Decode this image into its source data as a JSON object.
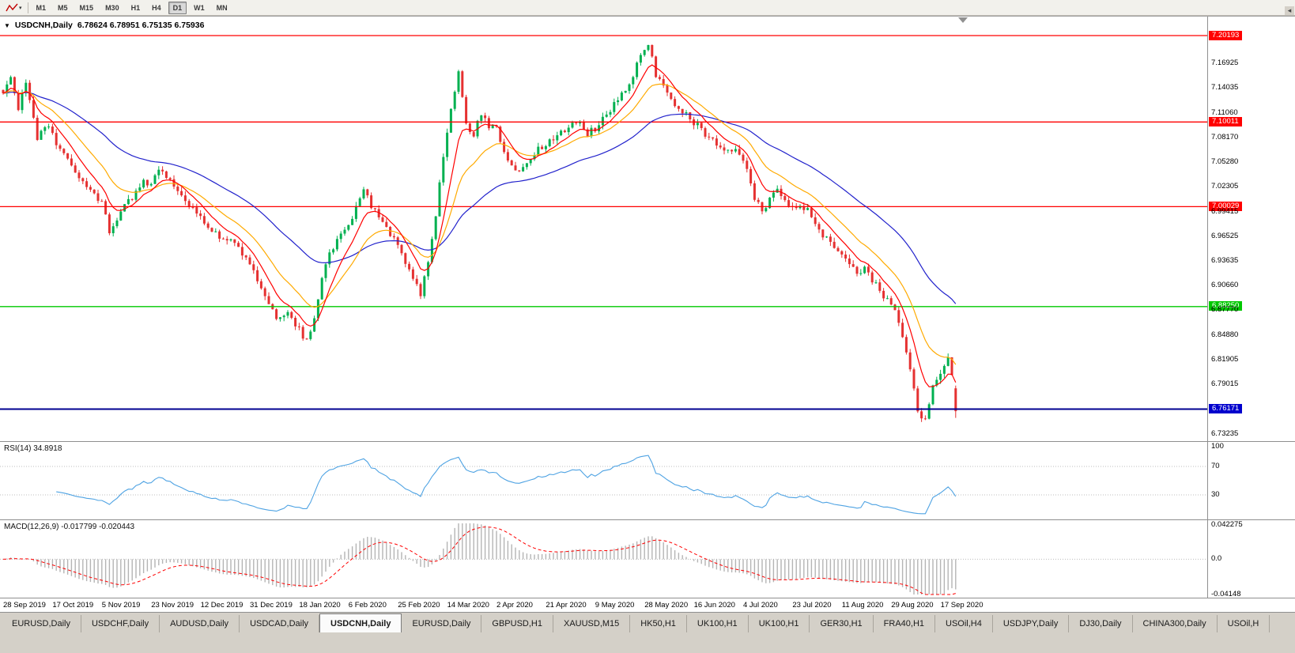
{
  "toolbar": {
    "timeframes": [
      "M1",
      "M5",
      "M15",
      "M30",
      "H1",
      "H4",
      "D1",
      "W1",
      "MN"
    ],
    "active_timeframe": "D1"
  },
  "chart_header": {
    "collapse_icon": "▼",
    "symbol": "USDCNH,Daily",
    "ohlc_text": "6.78624 6.78951 6.75135 6.75936"
  },
  "price_axis": {
    "labels": [
      {
        "text": "7.20193",
        "price": 7.20193,
        "type": "red"
      },
      {
        "text": "7.16925",
        "price": 7.16925,
        "type": "normal"
      },
      {
        "text": "7.14035",
        "price": 7.14035,
        "type": "normal"
      },
      {
        "text": "7.11060",
        "price": 7.1106,
        "type": "normal"
      },
      {
        "text": "7.10011",
        "price": 7.10011,
        "type": "red"
      },
      {
        "text": "7.08170",
        "price": 7.0817,
        "type": "normal"
      },
      {
        "text": "7.05280",
        "price": 7.0528,
        "type": "normal"
      },
      {
        "text": "7.02305",
        "price": 7.02305,
        "type": "normal"
      },
      {
        "text": "7.00029",
        "price": 7.00029,
        "type": "red"
      },
      {
        "text": "6.99415",
        "price": 6.99415,
        "type": "normal"
      },
      {
        "text": "6.96525",
        "price": 6.96525,
        "type": "normal"
      },
      {
        "text": "6.93635",
        "price": 6.93635,
        "type": "normal"
      },
      {
        "text": "6.90660",
        "price": 6.9066,
        "type": "normal"
      },
      {
        "text": "6.88250",
        "price": 6.8825,
        "type": "green"
      },
      {
        "text": "6.87770",
        "price": 6.8777,
        "type": "normal"
      },
      {
        "text": "6.84880",
        "price": 6.8488,
        "type": "normal"
      },
      {
        "text": "6.81905",
        "price": 6.81905,
        "type": "normal"
      },
      {
        "text": "6.79015",
        "price": 6.79015,
        "type": "normal"
      },
      {
        "text": "6.76171",
        "price": 6.76171,
        "type": "blue"
      },
      {
        "text": "6.73235",
        "price": 6.73235,
        "type": "normal"
      }
    ]
  },
  "rsi": {
    "label": "RSI(14) 34.8918",
    "axis": [
      {
        "text": "100",
        "value": 100
      },
      {
        "text": "70",
        "value": 70
      },
      {
        "text": "30",
        "value": 30
      }
    ]
  },
  "macd": {
    "label": "MACD(12,26,9) -0.017799 -0.020443",
    "axis": [
      {
        "text": "0.042275",
        "value": 0.042275
      },
      {
        "text": "0.0",
        "value": 0
      },
      {
        "text": "-0.04148",
        "value": -0.04148
      }
    ]
  },
  "date_axis": {
    "labels": [
      "28 Sep 2019",
      "17 Oct 2019",
      "5 Nov 2019",
      "23 Nov 2019",
      "12 Dec 2019",
      "31 Dec 2019",
      "18 Jan 2020",
      "6 Feb 2020",
      "25 Feb 2020",
      "14 Mar 2020",
      "2 Apr 2020",
      "21 Apr 2020",
      "9 May 2020",
      "28 May 2020",
      "16 Jun 2020",
      "4 Jul 2020",
      "23 Jul 2020",
      "11 Aug 2020",
      "29 Aug 2020",
      "17 Sep 2020"
    ]
  },
  "tabs": {
    "scroll_arrow": "◂",
    "items": [
      {
        "label": "EURUSD,Daily"
      },
      {
        "label": "USDCHF,Daily"
      },
      {
        "label": "AUDUSD,Daily"
      },
      {
        "label": "USDCAD,Daily"
      },
      {
        "label": "USDCNH,Daily",
        "active": true
      },
      {
        "label": "EURUSD,Daily"
      },
      {
        "label": "GBPUSD,H1"
      },
      {
        "label": "XAUUSD,M15"
      },
      {
        "label": "HK50,H1"
      },
      {
        "label": "UK100,H1"
      },
      {
        "label": "UK100,H1"
      },
      {
        "label": "GER30,H1"
      },
      {
        "label": "FRA40,H1"
      },
      {
        "label": "USOil,H4"
      },
      {
        "label": "USDJPY,Daily"
      },
      {
        "label": "DJ30,Daily"
      },
      {
        "label": "CHINA300,Daily"
      },
      {
        "label": "USOil,H"
      }
    ]
  },
  "chart_data": {
    "type": "candlestick",
    "symbol": "USDCNH",
    "timeframe": "Daily",
    "last_candle": {
      "open": 6.78624,
      "high": 6.78951,
      "low": 6.75135,
      "close": 6.75936
    },
    "price_top": 7.20193,
    "price_bottom": 6.73235,
    "candle_count": 252,
    "close_anchors": [
      [
        0,
        7.13
      ],
      [
        2,
        7.152
      ],
      [
        4,
        7.118
      ],
      [
        6,
        7.145
      ],
      [
        9,
        7.082
      ],
      [
        12,
        7.096
      ],
      [
        14,
        7.076
      ],
      [
        17,
        7.056
      ],
      [
        20,
        7.036
      ],
      [
        23,
        7.021
      ],
      [
        26,
        7.004
      ],
      [
        28,
        6.972
      ],
      [
        31,
        6.996
      ],
      [
        34,
        7.012
      ],
      [
        37,
        7.03
      ],
      [
        39,
        7.026
      ],
      [
        41,
        7.044
      ],
      [
        44,
        7.034
      ],
      [
        47,
        7.012
      ],
      [
        50,
        6.999
      ],
      [
        52,
        6.986
      ],
      [
        55,
        6.972
      ],
      [
        58,
        6.962
      ],
      [
        61,
        6.956
      ],
      [
        64,
        6.94
      ],
      [
        67,
        6.916
      ],
      [
        70,
        6.886
      ],
      [
        72,
        6.866
      ],
      [
        75,
        6.872
      ],
      [
        78,
        6.856
      ],
      [
        80,
        6.842
      ],
      [
        82,
        6.872
      ],
      [
        84,
        6.916
      ],
      [
        86,
        6.946
      ],
      [
        88,
        6.962
      ],
      [
        91,
        6.978
      ],
      [
        93,
        7.002
      ],
      [
        95,
        7.018
      ],
      [
        97,
        7.002
      ],
      [
        99,
        6.988
      ],
      [
        101,
        6.976
      ],
      [
        104,
        6.956
      ],
      [
        106,
        6.936
      ],
      [
        108,
        6.918
      ],
      [
        110,
        6.898
      ],
      [
        112,
        6.932
      ],
      [
        114,
        6.992
      ],
      [
        116,
        7.062
      ],
      [
        118,
        7.118
      ],
      [
        120,
        7.156
      ],
      [
        122,
        7.098
      ],
      [
        124,
        7.086
      ],
      [
        126,
        7.112
      ],
      [
        128,
        7.094
      ],
      [
        130,
        7.092
      ],
      [
        132,
        7.068
      ],
      [
        134,
        7.05
      ],
      [
        136,
        7.044
      ],
      [
        139,
        7.058
      ],
      [
        141,
        7.07
      ],
      [
        143,
        7.072
      ],
      [
        146,
        7.082
      ],
      [
        149,
        7.096
      ],
      [
        152,
        7.1
      ],
      [
        154,
        7.086
      ],
      [
        156,
        7.092
      ],
      [
        158,
        7.102
      ],
      [
        160,
        7.116
      ],
      [
        162,
        7.126
      ],
      [
        164,
        7.136
      ],
      [
        166,
        7.156
      ],
      [
        168,
        7.176
      ],
      [
        170,
        7.193
      ],
      [
        172,
        7.154
      ],
      [
        174,
        7.14
      ],
      [
        176,
        7.124
      ],
      [
        178,
        7.114
      ],
      [
        180,
        7.108
      ],
      [
        182,
        7.1
      ],
      [
        185,
        7.086
      ],
      [
        188,
        7.076
      ],
      [
        191,
        7.068
      ],
      [
        194,
        7.062
      ],
      [
        196,
        7.044
      ],
      [
        198,
        7.01
      ],
      [
        200,
        6.994
      ],
      [
        202,
        7.008
      ],
      [
        204,
        7.022
      ],
      [
        206,
        7.01
      ],
      [
        208,
        6.998
      ],
      [
        210,
        7.004
      ],
      [
        212,
        6.996
      ],
      [
        214,
        6.982
      ],
      [
        216,
        6.968
      ],
      [
        218,
        6.958
      ],
      [
        221,
        6.948
      ],
      [
        223,
        6.934
      ],
      [
        225,
        6.922
      ],
      [
        227,
        6.928
      ],
      [
        229,
        6.914
      ],
      [
        231,
        6.9
      ],
      [
        234,
        6.888
      ],
      [
        236,
        6.862
      ],
      [
        238,
        6.826
      ],
      [
        240,
        6.79
      ],
      [
        241,
        6.762
      ],
      [
        242,
        6.748
      ],
      [
        243,
        6.752
      ],
      [
        244,
        6.766
      ],
      [
        245,
        6.79
      ],
      [
        246,
        6.8
      ],
      [
        247,
        6.806
      ],
      [
        248,
        6.816
      ],
      [
        249,
        6.826
      ],
      [
        250,
        6.8
      ],
      [
        251,
        6.75936
      ]
    ],
    "hlines": [
      {
        "price": 7.20193,
        "color": "#ff0000",
        "width": 1.3
      },
      {
        "price": 7.10011,
        "color": "#ff0000",
        "width": 1.3
      },
      {
        "price": 7.00029,
        "color": "#ff0000",
        "width": 1.3
      },
      {
        "price": 6.8825,
        "color": "#00c800",
        "width": 1.3
      },
      {
        "price": 6.76171,
        "color": "#000090",
        "width": 2
      }
    ],
    "ma_fast": 8,
    "ma_mid": 18,
    "ma_slow": 48,
    "macd_top": 0.042275,
    "macd_bottom": -0.04148,
    "indicators": {
      "rsi": {
        "period": 14,
        "current": 34.8918
      },
      "macd": {
        "fast": 12,
        "slow": 26,
        "signal": 9,
        "current": -0.017799,
        "signal_current": -0.020443
      }
    },
    "colors": {
      "candle_up": "#00b050",
      "candle_down": "#e53131",
      "ma_fast": "#ff0000",
      "ma_mid": "#ffaa00",
      "ma_slow": "#2222cc",
      "rsi_line": "#4fa3e3",
      "macd_hist": "#b4b4b4",
      "macd_signal": "#ff0000",
      "badge_red": "#ff0000",
      "badge_green": "#00c800",
      "badge_blue": "#0000cd"
    }
  }
}
